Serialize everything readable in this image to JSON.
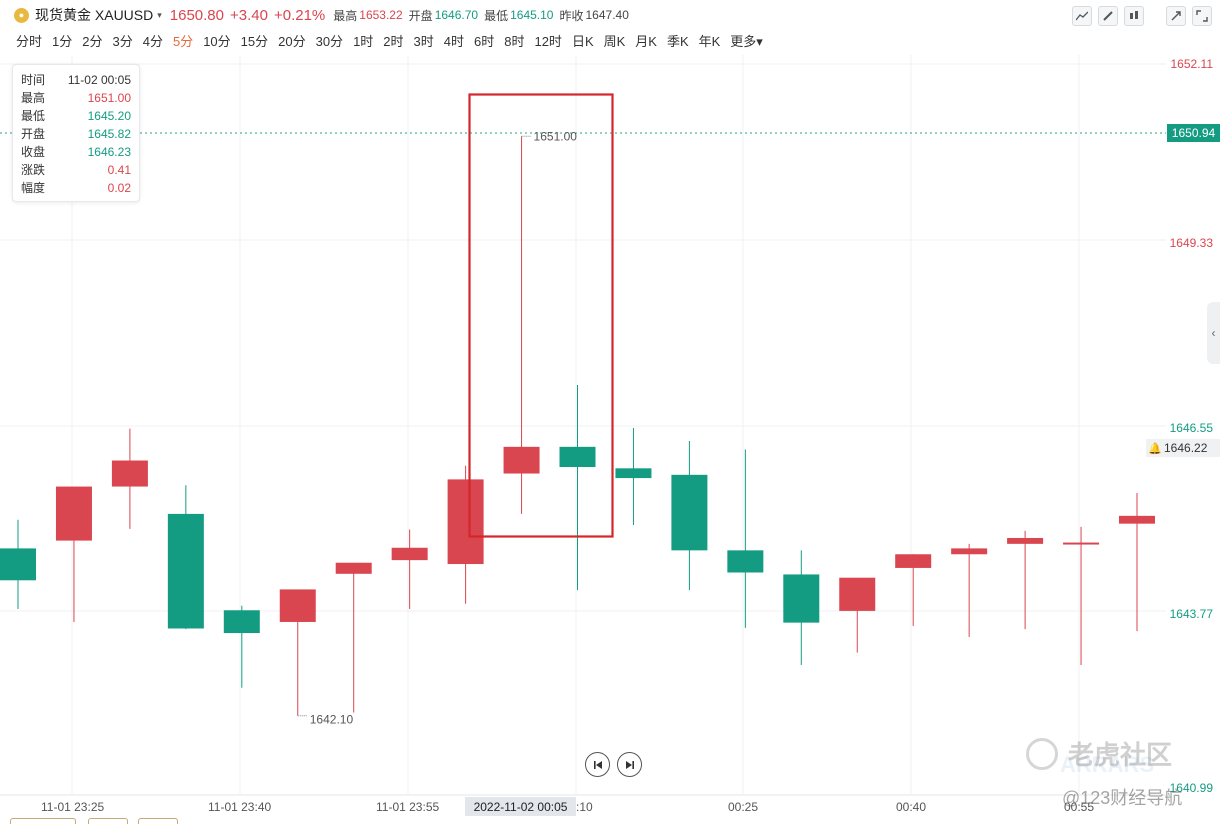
{
  "header": {
    "symbol": "现货黄金 XAUUSD",
    "dropdown_caret": "▾",
    "price": "1650.80",
    "change": "+3.40",
    "change_pct": "+0.21%",
    "high_label": "最高",
    "high_value": "1653.22",
    "open_label": "开盘",
    "open_value": "1646.70",
    "low_label": "最低",
    "low_value": "1645.10",
    "prev_close_label": "昨收",
    "prev_close_value": "1647.40"
  },
  "toolbar": {
    "icons": [
      "line-chart-icon",
      "pen-icon",
      "candles-icon",
      "expand-icon",
      "fullscreen-icon"
    ]
  },
  "periods": {
    "items": [
      "分时",
      "1分",
      "2分",
      "3分",
      "4分",
      "5分",
      "10分",
      "15分",
      "20分",
      "30分",
      "1时",
      "2时",
      "3时",
      "4时",
      "6时",
      "8时",
      "12时",
      "日K",
      "周K",
      "月K",
      "季K",
      "年K",
      "更多▾"
    ],
    "active": "5分"
  },
  "infobox": {
    "rows": [
      {
        "k": "时间",
        "v": "11-02 00:05",
        "tone": "dark"
      },
      {
        "k": "最高",
        "v": "1651.00",
        "tone": "red"
      },
      {
        "k": "最低",
        "v": "1645.20",
        "tone": "green"
      },
      {
        "k": "开盘",
        "v": "1645.82",
        "tone": "green"
      },
      {
        "k": "收盘",
        "v": "1646.23",
        "tone": "green"
      },
      {
        "k": "涨跌",
        "v": "0.41",
        "tone": "red"
      },
      {
        "k": "幅度",
        "v": "0.02",
        "tone": "red"
      }
    ]
  },
  "price_axis": {
    "labels": [
      "1652.11",
      "1649.33",
      "1646.55",
      "1643.77",
      "1640.99"
    ],
    "current_tag": "1650.94",
    "hover_tag": "1646.22"
  },
  "time_axis": {
    "labels": [
      "11-01 23:25",
      "11-01 23:40",
      "11-01 23:55",
      "00:25",
      "00:40",
      "00:55"
    ],
    "crosshair": "2022-11-02 00:05",
    "partial": ":10"
  },
  "annotations": {
    "max_marker": "1651.00",
    "min_marker": "1642.10"
  },
  "watermark": {
    "line1": "老虎社区",
    "line2": "@123财经导航",
    "ghost": "ARRARS"
  },
  "colors": {
    "up": "#d9464f",
    "down": "#139c82",
    "highlight": "#d4262c",
    "accent": "#e7693a"
  },
  "chart_data": {
    "type": "candlestick",
    "title": "",
    "xlabel": "",
    "ylabel": "",
    "ylim": [
      1640.99,
      1652.11
    ],
    "x": [
      "23:20",
      "23:25",
      "23:30",
      "23:35",
      "23:40",
      "23:45",
      "23:50",
      "23:55",
      "00:00",
      "00:05",
      "00:10",
      "00:15",
      "00:20",
      "00:25",
      "00:30",
      "00:35",
      "00:40",
      "00:45",
      "00:50",
      "00:55",
      "01:00"
    ],
    "series": [
      {
        "open": [
          1644.67,
          1644.79,
          1645.62,
          1645.2,
          1643.72,
          1643.54,
          1644.28,
          1644.49,
          1644.43,
          1645.82,
          1646.23,
          1645.9,
          1645.8,
          1644.64,
          1644.27,
          1643.71,
          1644.37,
          1644.58,
          1644.74,
          1644.73,
          1645.05
        ],
        "high": [
          1645.11,
          1644.79,
          1646.51,
          1645.64,
          1643.79,
          1643.84,
          1644.4,
          1644.96,
          1645.94,
          1651.0,
          1647.18,
          1646.52,
          1646.32,
          1646.19,
          1644.64,
          1643.86,
          1644.58,
          1644.74,
          1644.94,
          1645.0,
          1645.52
        ]
      },
      {
        "low": [
          1643.74,
          1643.54,
          1644.97,
          1643.43,
          1642.53,
          1642.1,
          1642.15,
          1643.74,
          1643.82,
          1645.2,
          1644.03,
          1645.03,
          1644.03,
          1643.45,
          1642.88,
          1643.07,
          1643.48,
          1643.31,
          1643.43,
          1642.88,
          1643.4
        ],
        "close": [
          1644.18,
          1645.62,
          1646.02,
          1643.44,
          1643.37,
          1644.04,
          1644.45,
          1644.68,
          1645.73,
          1646.23,
          1645.92,
          1645.75,
          1644.64,
          1644.3,
          1643.53,
          1644.22,
          1644.58,
          1644.67,
          1644.83,
          1644.76,
          1645.17
        ]
      }
    ]
  }
}
